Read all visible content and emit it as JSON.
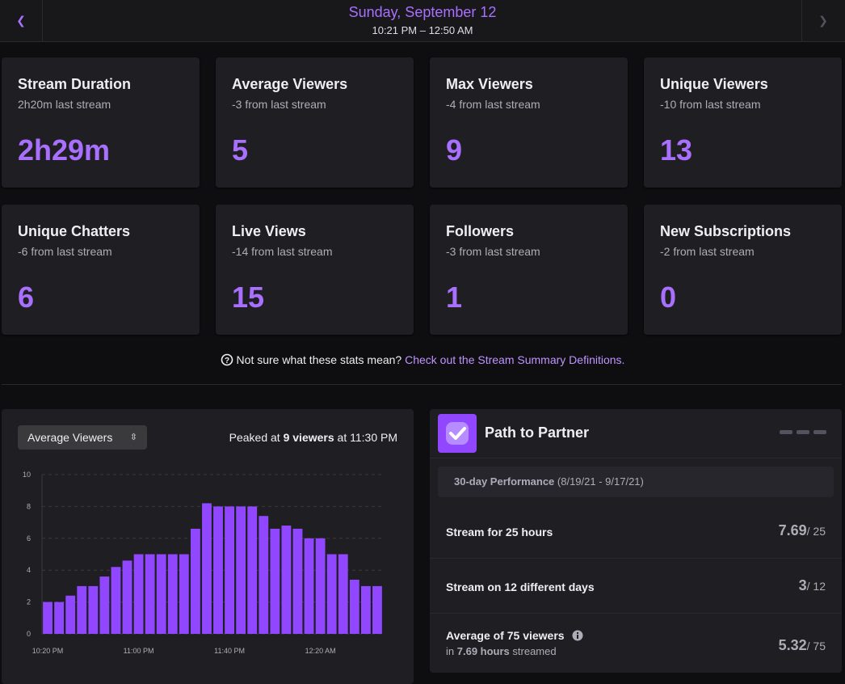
{
  "header": {
    "title": "Sunday, September 12",
    "subtitle": "10:21 PM – 12:50 AM"
  },
  "stats": [
    {
      "label": "Stream Duration",
      "comparison": "2h20m last stream",
      "value": "2h29m"
    },
    {
      "label": "Average Viewers",
      "comparison": "-3 from last stream",
      "value": 5
    },
    {
      "label": "Max Viewers",
      "comparison": "-4 from last stream",
      "value": 9
    },
    {
      "label": "Unique Viewers",
      "comparison": "-10 from last stream",
      "value": 13
    },
    {
      "label": "Unique Chatters",
      "comparison": "-6 from last stream",
      "value": 6
    },
    {
      "label": "Live Views",
      "comparison": "-14 from last stream",
      "value": 15
    },
    {
      "label": "Followers",
      "comparison": "-3 from last stream",
      "value": 1
    },
    {
      "label": "New Subscriptions",
      "comparison": "-2 from last stream",
      "value": 0
    }
  ],
  "help": {
    "question": "Not sure what these stats mean?",
    "link": "Check out the Stream Summary Definitions."
  },
  "chart_panel": {
    "selector": "Average Viewers",
    "peak": {
      "prefix": "Peaked at",
      "highlight": "9 viewers",
      "suffix": "at 11:30 PM"
    }
  },
  "chart_data": {
    "type": "bar",
    "categories": [
      "10:20 PM",
      null,
      null,
      null,
      null,
      null,
      null,
      null,
      "11:00 PM",
      null,
      null,
      null,
      null,
      null,
      null,
      null,
      "11:40 PM",
      null,
      null,
      null,
      null,
      null,
      null,
      null,
      "12:20 AM",
      null,
      null,
      null,
      null,
      null
    ],
    "values": [
      2.0,
      2.0,
      2.4,
      3.0,
      3.0,
      3.6,
      4.2,
      4.6,
      5.0,
      5.0,
      5.0,
      5.0,
      5.0,
      6.6,
      8.2,
      8.0,
      8.0,
      8.0,
      8.0,
      7.4,
      6.6,
      6.8,
      6.6,
      6.0,
      6.0,
      5.0,
      5.0,
      3.4,
      3.0,
      3.0
    ],
    "color": "#9147ff",
    "ylim": [
      0,
      10
    ],
    "yticks": [
      0,
      2,
      4,
      6,
      8,
      10
    ],
    "grid": true
  },
  "partner": {
    "title": "Path to Partner",
    "period": {
      "label": "30-day Performance",
      "range": "(8/19/21 - 9/17/21)"
    },
    "goals": [
      {
        "label": "Stream for 25 hours",
        "value": 7.69,
        "target": "/ 25"
      },
      {
        "label": "Stream on 12 different days",
        "value": 3,
        "target": "/ 12"
      },
      {
        "label": "Average of 75 viewers",
        "detail": {
          "prefix": "in",
          "highlight": "7.69 hours",
          "suffix": "streamed"
        },
        "value": 5.32,
        "target": "/ 75"
      }
    ]
  }
}
